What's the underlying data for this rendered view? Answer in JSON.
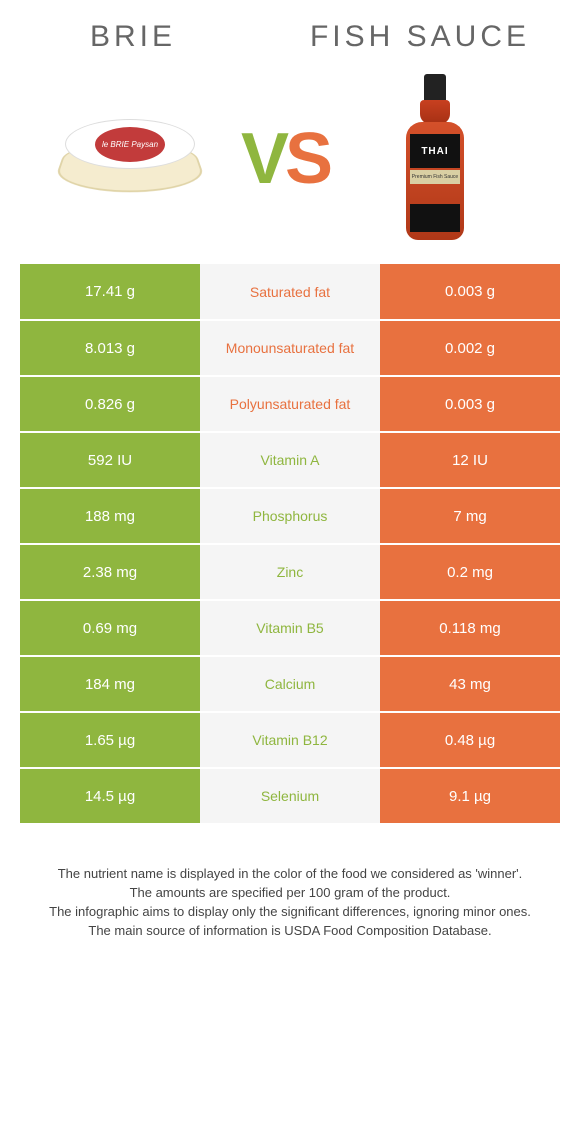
{
  "titles": {
    "left": "BRIE",
    "right": "FISH SAUCE"
  },
  "vs": {
    "v": "V",
    "s": "S"
  },
  "brie_label": "le BRIE Paysan",
  "bottle_label": "THAI",
  "bottle_sublabel": "Premium Fish Sauce",
  "colors": {
    "green": "#8fb63f",
    "orange": "#e8713f",
    "mid_bg": "#f5f5f5"
  },
  "rows": [
    {
      "left": "17.41 g",
      "label": "Saturated fat",
      "right": "0.003 g",
      "label_color": "orange"
    },
    {
      "left": "8.013 g",
      "label": "Monounsaturated fat",
      "right": "0.002 g",
      "label_color": "orange"
    },
    {
      "left": "0.826 g",
      "label": "Polyunsaturated fat",
      "right": "0.003 g",
      "label_color": "orange"
    },
    {
      "left": "592 IU",
      "label": "Vitamin A",
      "right": "12 IU",
      "label_color": "green"
    },
    {
      "left": "188 mg",
      "label": "Phosphorus",
      "right": "7 mg",
      "label_color": "green"
    },
    {
      "left": "2.38 mg",
      "label": "Zinc",
      "right": "0.2 mg",
      "label_color": "green"
    },
    {
      "left": "0.69 mg",
      "label": "Vitamin B5",
      "right": "0.118 mg",
      "label_color": "green"
    },
    {
      "left": "184 mg",
      "label": "Calcium",
      "right": "43 mg",
      "label_color": "green"
    },
    {
      "left": "1.65 µg",
      "label": "Vitamin B12",
      "right": "0.48 µg",
      "label_color": "green"
    },
    {
      "left": "14.5 µg",
      "label": "Selenium",
      "right": "9.1 µg",
      "label_color": "green"
    }
  ],
  "footnotes": [
    "The nutrient name is displayed in the color of the food we considered as 'winner'.",
    "The amounts are specified per 100 gram of the product.",
    "The infographic aims to display only the significant differences, ignoring minor ones.",
    "The main source of information is USDA Food Composition Database."
  ]
}
